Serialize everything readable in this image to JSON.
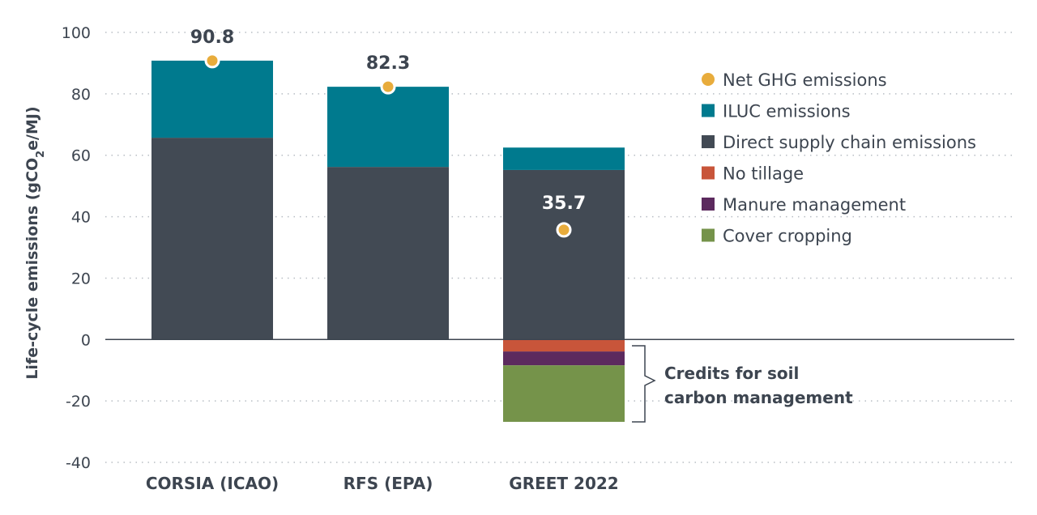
{
  "chart_data": {
    "type": "bar",
    "stacked": true,
    "ylabel": "Life-cycle emissions (gCO2e/MJ)",
    "ylabel_parts": {
      "main": "Life-cycle emissions (gCO",
      "sub": "2",
      "end": "e/MJ)"
    },
    "ylim": [
      -40,
      100
    ],
    "yticks": [
      100,
      80,
      60,
      40,
      20,
      0,
      -20,
      -40
    ],
    "grid": "horizontal dotted",
    "legend_placement": "right",
    "categories": [
      "CORSIA (ICAO)",
      "RFS (EPA)",
      "GREET 2022"
    ],
    "series": [
      {
        "name": "Direct supply chain emissions",
        "color": "#424a54",
        "values": [
          65.7,
          56.2,
          55.2
        ]
      },
      {
        "name": "ILUC emissions",
        "color": "#007a8e",
        "values": [
          25.1,
          26.1,
          7.3
        ]
      },
      {
        "name": "No tillage",
        "color": "#c8553a",
        "values": [
          0,
          0,
          -3.9
        ]
      },
      {
        "name": "Manure management",
        "color": "#5c2a5e",
        "values": [
          0,
          0,
          -4.5
        ]
      },
      {
        "name": "Cover cropping",
        "color": "#75934a",
        "values": [
          0,
          0,
          -18.4
        ]
      }
    ],
    "net": {
      "name": "Net GHG emissions",
      "color": "#e8ac3c",
      "values": [
        90.8,
        82.3,
        35.7
      ],
      "labels": [
        "90.8",
        "82.3",
        "35.7"
      ]
    },
    "legend_order": [
      "Net GHG emissions",
      "ILUC emissions",
      "Direct supply chain emissions",
      "No tillage",
      "Manure management",
      "Cover cropping"
    ],
    "annotation": [
      "Credits for soil",
      "carbon management"
    ]
  }
}
